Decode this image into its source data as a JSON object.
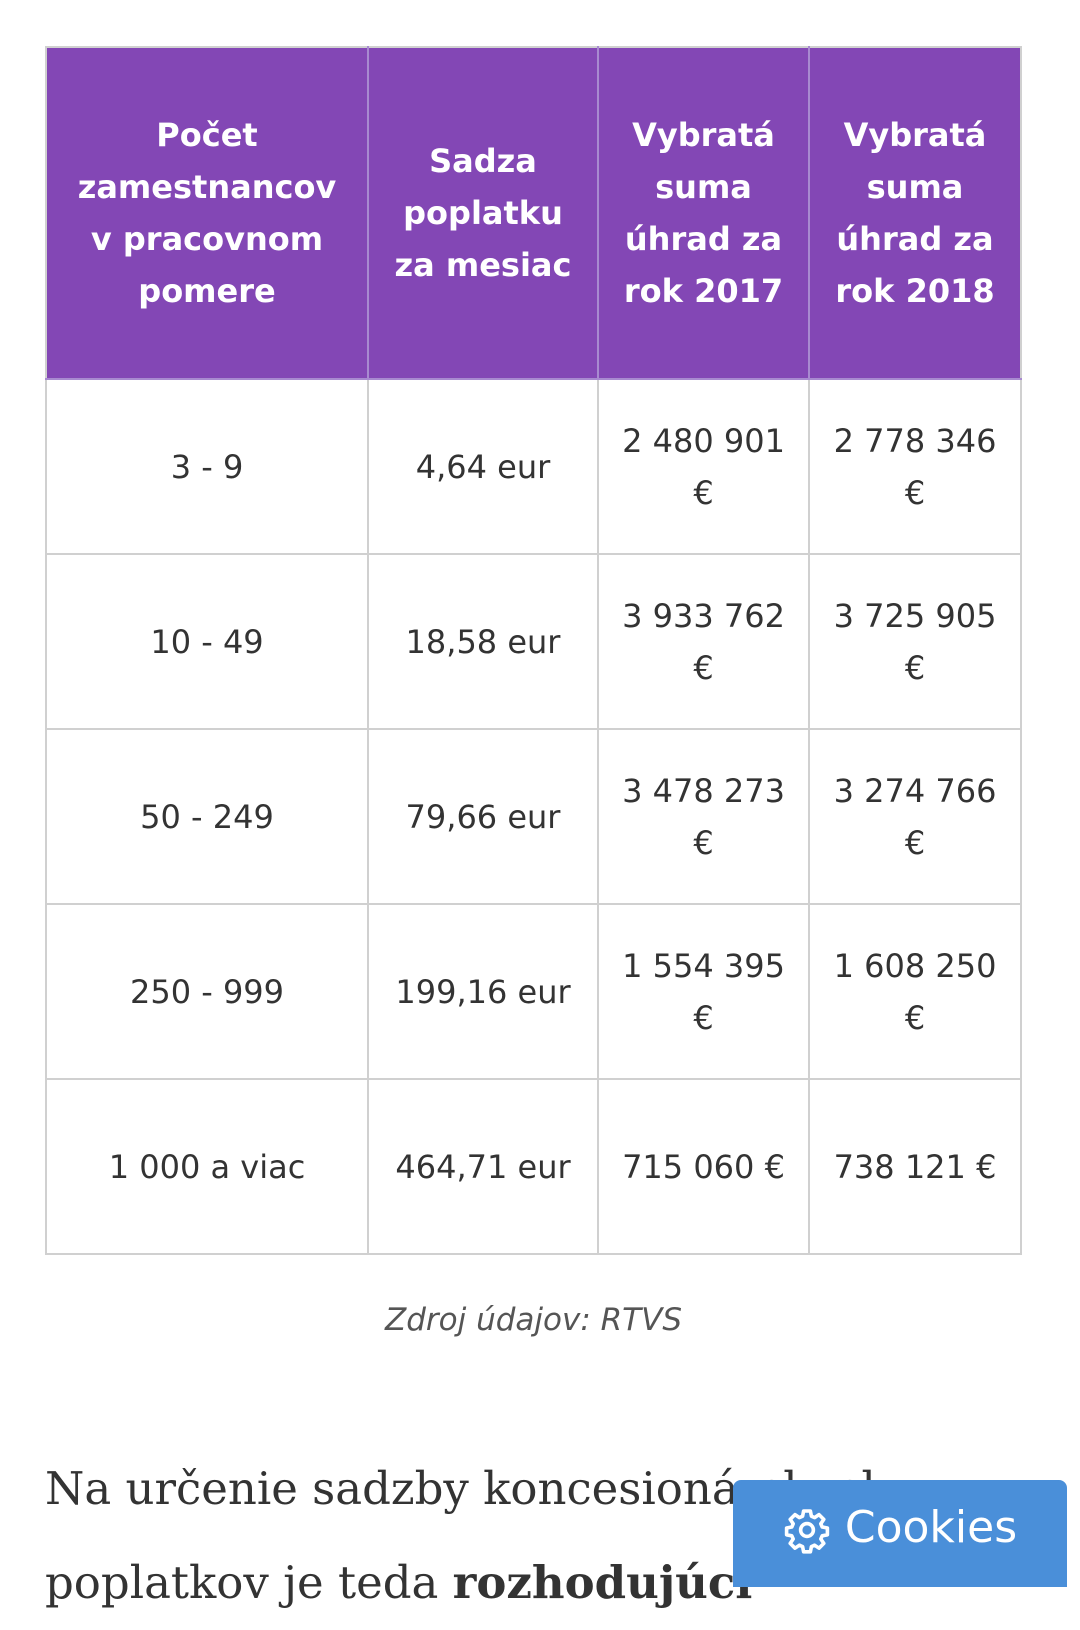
{
  "table": {
    "headers": [
      "Počet zamestnancov v pracovnom pomere",
      "Sadza poplatku za mesiac",
      "Vybratá suma úhrad za rok 2017",
      "Vybratá suma úhrad za rok 2018"
    ],
    "rows": [
      [
        "3 - 9",
        "4,64 eur",
        "2 480 901 €",
        "2 778 346 €"
      ],
      [
        "10 - 49",
        "18,58 eur",
        "3 933 762 €",
        "3 725 905 €"
      ],
      [
        "50 - 249",
        "79,66 eur",
        "3 478 273 €",
        "3 274 766 €"
      ],
      [
        "250 - 999",
        "199,16 eur",
        "1 554 395 €",
        "1 608 250 €"
      ],
      [
        "1 000 a viac",
        "464,71 eur",
        "715 060 €",
        "738 121 €"
      ]
    ]
  },
  "caption": "Zdroj údajov: RTVS",
  "article": {
    "text_start": "Na určenie sadzby koncesionárskych poplatkov je teda ",
    "text_bold": "rozhodujúci"
  },
  "cookies": {
    "label": "Cookies",
    "icon": "gear-icon",
    "color": "#4a8fd9"
  },
  "colors": {
    "header_bg": "#8347b5",
    "border": "#d0d0d0"
  }
}
